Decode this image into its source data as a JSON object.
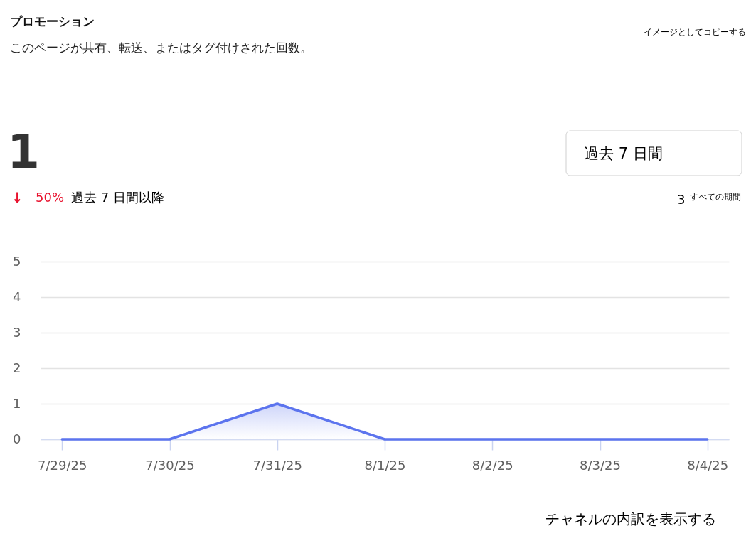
{
  "chart_data": {
    "type": "area",
    "title": "プロモーション",
    "subtitle": "このページが共有、転送、またはタグ付けされた回数。",
    "categories": [
      "7/29/25",
      "7/30/25",
      "7/31/25",
      "8/1/25",
      "8/2/25",
      "8/3/25",
      "8/4/25"
    ],
    "values": [
      0,
      0,
      1,
      0,
      0,
      0,
      0
    ],
    "color": "#5c74ee",
    "ylim": [
      0,
      5
    ],
    "yticks": [
      0,
      1,
      2,
      3,
      4,
      5
    ],
    "grid": "y",
    "annotations": [
      "イメージとしてコピーする",
      "1",
      "↓",
      "50%",
      "過去 7 日間以降",
      "過去 7 日間",
      "3",
      "すべての期間",
      "チャネルの内訳を表示する"
    ]
  }
}
